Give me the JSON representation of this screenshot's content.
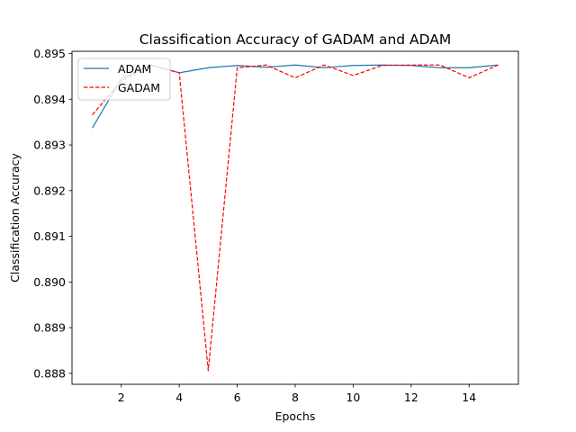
{
  "chart_data": {
    "type": "line",
    "title": "Classification Accuracy of GADAM and ADAM",
    "xlabel": "Epochs",
    "ylabel": "Classification Accuracy",
    "xlim": [
      0.3,
      15.7
    ],
    "ylim": [
      0.88776,
      0.89505
    ],
    "xticks": [
      2,
      4,
      6,
      8,
      10,
      12,
      14
    ],
    "yticks": [
      0.888,
      0.889,
      0.89,
      0.891,
      0.892,
      0.893,
      0.894,
      0.895
    ],
    "ytick_labels": [
      "0.888",
      "0.889",
      "0.890",
      "0.891",
      "0.892",
      "0.893",
      "0.894",
      "0.895"
    ],
    "grid": false,
    "legend_position": "upper-left",
    "x": [
      1,
      2,
      3,
      4,
      5,
      6,
      7,
      8,
      9,
      10,
      11,
      12,
      13,
      14,
      15
    ],
    "series": [
      {
        "name": "ADAM",
        "color": "#1f77b4",
        "style": "solid",
        "values": [
          0.89337,
          0.89445,
          0.89475,
          0.89458,
          0.89469,
          0.89474,
          0.8947,
          0.89475,
          0.89469,
          0.89474,
          0.89475,
          0.89474,
          0.89469,
          0.89469,
          0.89475
        ]
      },
      {
        "name": "GADAM",
        "color": "#ff0000",
        "style": "dashed",
        "values": [
          0.89366,
          0.8944,
          0.89475,
          0.89458,
          0.88806,
          0.89469,
          0.89475,
          0.89447,
          0.89475,
          0.89452,
          0.89474,
          0.89475,
          0.89475,
          0.89447,
          0.89475
        ]
      }
    ]
  }
}
